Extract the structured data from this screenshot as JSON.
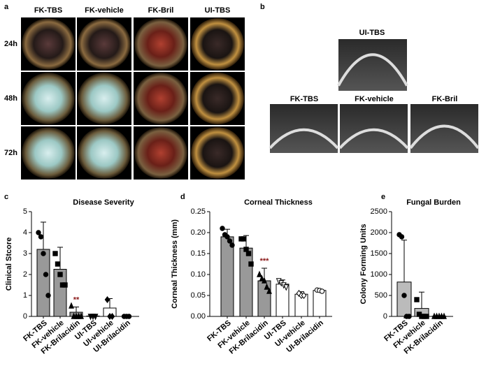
{
  "panels": {
    "a": {
      "label": "a",
      "columns": [
        "FK-TBS",
        "FK-vehicle",
        "FK-Bril",
        "UI-TBS"
      ],
      "rows": [
        "24h",
        "48h",
        "72h"
      ]
    },
    "b": {
      "label": "b",
      "top": "UI-TBS",
      "bottom": [
        "FK-TBS",
        "FK-vehicle",
        "FK-Bril"
      ]
    }
  },
  "chart_data": [
    {
      "type": "bar",
      "panel": "c",
      "title": "Disease Severity",
      "ylabel": "Clinical Stcore",
      "categories": [
        "FK-TBS",
        "FK-vehicle",
        "FK-Brilacidin",
        "UI-TBS",
        "UI-vehicle",
        "UI-Brilacidin"
      ],
      "values": [
        3.2,
        2.25,
        0.2,
        0.02,
        0.4,
        0.0
      ],
      "errors": [
        1.3,
        1.05,
        0.25,
        0.05,
        0.45,
        0.05
      ],
      "colors": [
        "#999999",
        "#999999",
        "#999999",
        "#ffffff",
        "#ffffff",
        "#ffffff"
      ],
      "points": [
        [
          4,
          3.8,
          3,
          2,
          1
        ],
        [
          3,
          2.5,
          2,
          1.5,
          1.5
        ],
        [
          0.5,
          0,
          0,
          0,
          0
        ],
        [
          0,
          0,
          0
        ],
        [
          0.8,
          0,
          0
        ],
        [
          0,
          0,
          0
        ]
      ],
      "significance": [
        null,
        null,
        "**",
        null,
        null,
        null
      ],
      "ylim": [
        0,
        5
      ],
      "yticks": [
        0,
        1,
        2,
        3,
        4,
        5
      ]
    },
    {
      "type": "bar",
      "panel": "d",
      "title": "Corneal Thickness",
      "ylabel": "Corneal Thickness (mm)",
      "categories": [
        "FK-TBS",
        "FK-vehicle",
        "FK-Brilacidin",
        "UI-TBS",
        "UI-vehicle",
        "UI-Brilacidin"
      ],
      "values": [
        0.19,
        0.163,
        0.085,
        0.077,
        0.053,
        0.062
      ],
      "errors": [
        0.018,
        0.03,
        0.03,
        0.01,
        0.006,
        0.003
      ],
      "colors": [
        "#999999",
        "#999999",
        "#999999",
        "#ffffff",
        "#ffffff",
        "#ffffff"
      ],
      "points": [
        [
          0.21,
          0.195,
          0.19,
          0.18,
          0.17
        ],
        [
          0.185,
          0.185,
          0.16,
          0.15,
          0.125
        ],
        [
          0.1,
          0.09,
          0.085,
          0.07,
          0.06
        ],
        [
          0.085,
          0.08,
          0.075,
          0.07
        ],
        [
          0.055,
          0.05,
          0.05
        ],
        [
          0.063,
          0.062,
          0.06
        ]
      ],
      "significance": [
        null,
        null,
        "***",
        null,
        null,
        null
      ],
      "ylim": [
        0,
        0.25
      ],
      "yticks": [
        {
          "value": 0,
          "label": "0.00"
        },
        0.05,
        {
          "value": 0.1,
          "label": "0.10"
        },
        0.15,
        {
          "value": 0.2,
          "label": "0.20"
        },
        0.25
      ]
    },
    {
      "type": "bar",
      "panel": "e",
      "title": "Fungal Burden",
      "ylabel": "Colony Forming Units",
      "categories": [
        "FK-TBS",
        "FK-vehicle",
        "FK-Brilacidin"
      ],
      "values": [
        820,
        190,
        5
      ],
      "errors": [
        1000,
        390,
        5
      ],
      "colors": [
        "#bbbbbb",
        "#bbbbbb",
        "#bbbbbb"
      ],
      "points": [
        [
          1950,
          1900,
          500,
          0,
          0
        ],
        [
          400,
          50,
          0,
          0,
          0
        ],
        [
          0,
          0,
          0,
          0,
          0
        ]
      ],
      "significance": [
        null,
        null,
        null
      ],
      "ylim": [
        0,
        2500
      ],
      "yticks": [
        0,
        500,
        1000,
        1500,
        2000,
        2500
      ]
    }
  ]
}
